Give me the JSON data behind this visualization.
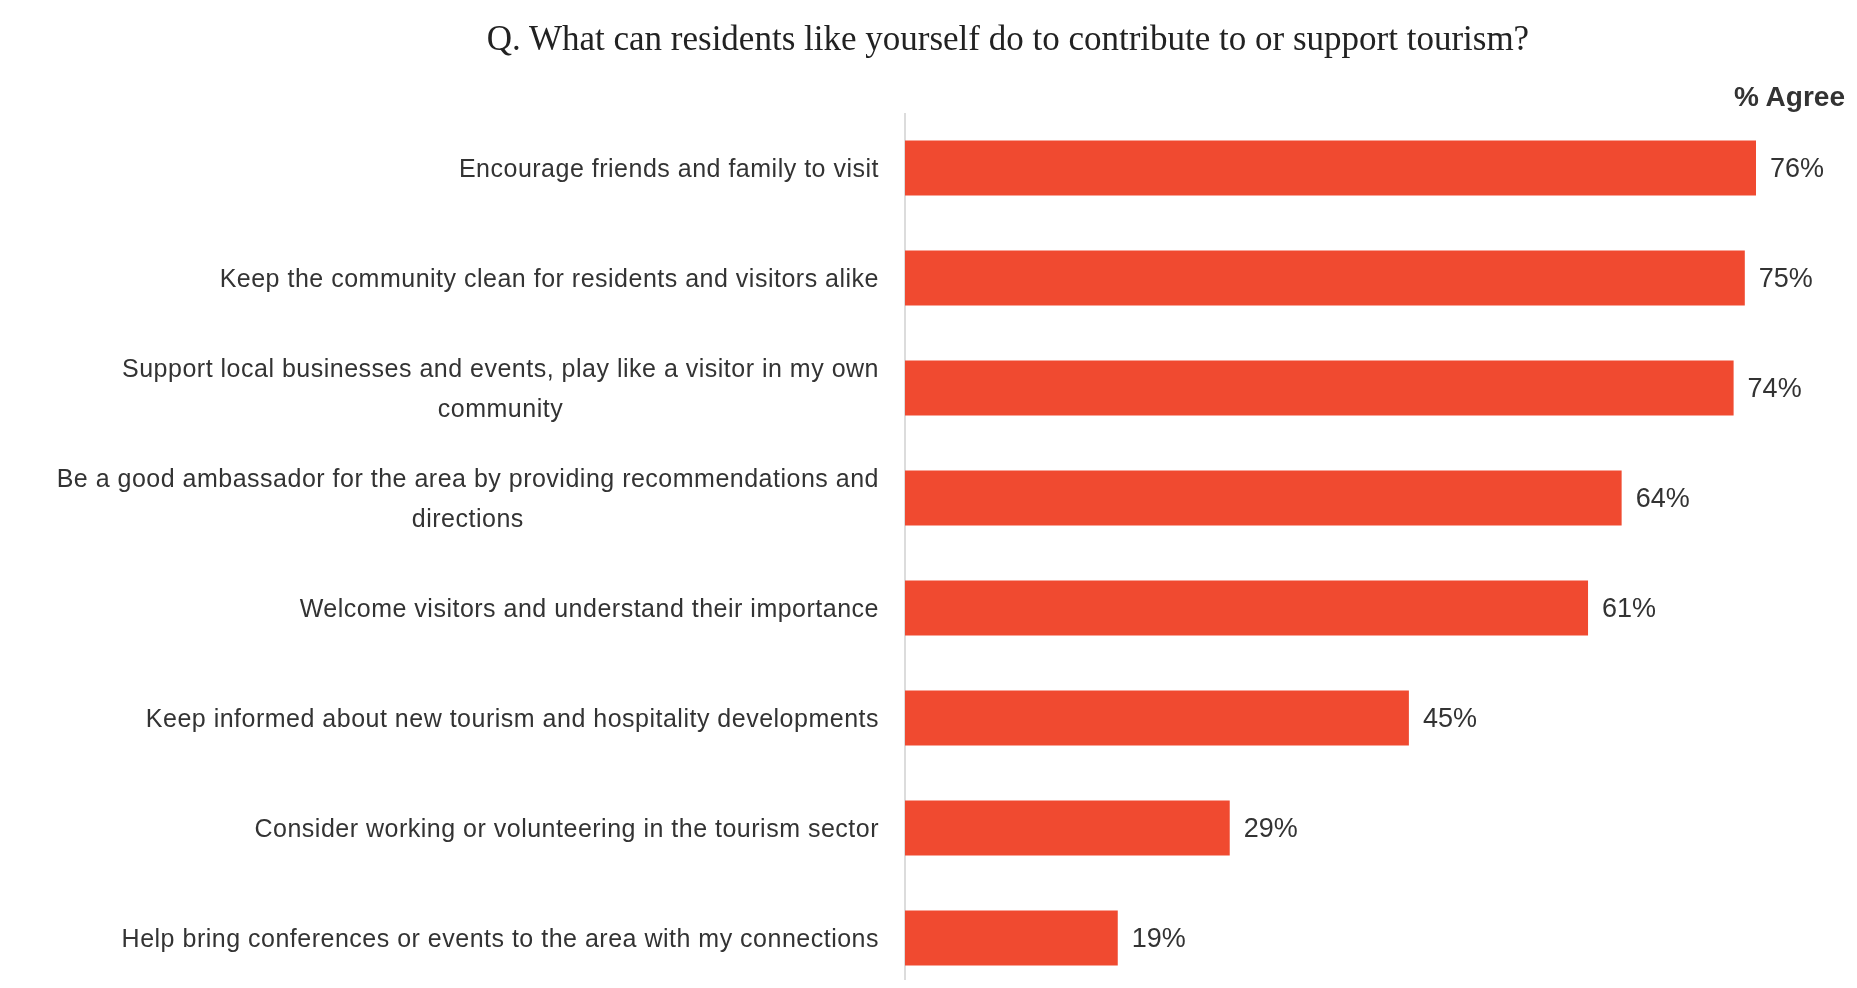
{
  "chart_data": {
    "type": "bar",
    "orientation": "horizontal",
    "title": "Q. What can residents like yourself do to contribute to or support tourism?",
    "categories": [
      "Encourage friends and family to visit",
      "Keep the community clean for residents and visitors alike",
      "Support local businesses and events, play like a visitor in my own community",
      "Be a good ambassador for the area by providing recommendations and directions",
      "Welcome visitors and understand their importance",
      "Keep informed about new tourism and hospitality developments",
      "Consider working or volunteering in the tourism sector",
      "Help bring conferences or events to the area with my connections"
    ],
    "values": [
      76,
      75,
      74,
      64,
      61,
      45,
      29,
      19
    ],
    "value_labels": [
      "76%",
      "75%",
      "74%",
      "64%",
      "61%",
      "45%",
      "29%",
      "19%"
    ],
    "color": "#f04a30",
    "tick_labels": "y",
    "annotations": [
      "% Agree"
    ]
  }
}
